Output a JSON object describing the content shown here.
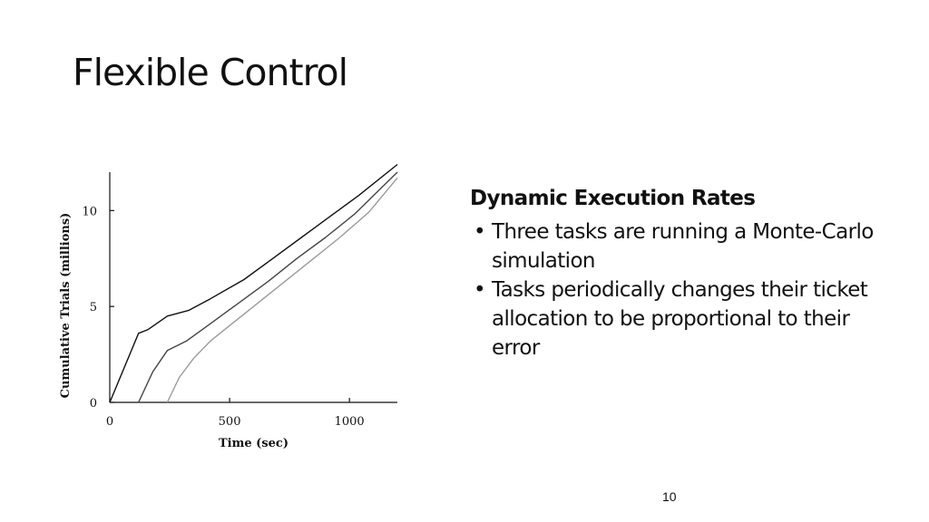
{
  "slide": {
    "title": "Flexible Control",
    "page_number": "10"
  },
  "text_block": {
    "heading": "Dynamic Execution Rates",
    "bullets": [
      "Three tasks are running a Monte-Carlo simulation",
      "Tasks periodically changes their ticket allocation to be proportional to their error"
    ],
    "bullet_glyph": "•"
  },
  "chart_data": {
    "type": "line",
    "title": "",
    "xlabel": "Time (sec)",
    "ylabel": "Cumulative Trials (millions)",
    "xlim": [
      0,
      1200
    ],
    "ylim": [
      0,
      12
    ],
    "x_ticks": [
      0,
      500,
      1000
    ],
    "y_ticks": [
      0,
      5,
      10
    ],
    "grid": false,
    "legend": "none",
    "series": [
      {
        "color": "#111111",
        "x": [
          0,
          120,
          160,
          240,
          330,
          420,
          560,
          680,
          800,
          920,
          1040,
          1200
        ],
        "y": [
          0,
          3.6,
          3.8,
          4.5,
          4.8,
          5.4,
          6.4,
          7.5,
          8.6,
          9.7,
          10.8,
          12.4
        ]
      },
      {
        "color": "#444444",
        "x": [
          120,
          180,
          240,
          320,
          420,
          540,
          660,
          780,
          900,
          1020,
          1200
        ],
        "y": [
          0,
          1.6,
          2.7,
          3.2,
          4.1,
          5.2,
          6.3,
          7.5,
          8.6,
          9.8,
          12.0
        ]
      },
      {
        "color": "#9a9a9a",
        "x": [
          240,
          290,
          350,
          420,
          500,
          600,
          720,
          840,
          960,
          1080,
          1200
        ],
        "y": [
          0,
          1.3,
          2.3,
          3.2,
          4.0,
          5.0,
          6.2,
          7.4,
          8.6,
          9.9,
          11.7
        ]
      }
    ]
  }
}
